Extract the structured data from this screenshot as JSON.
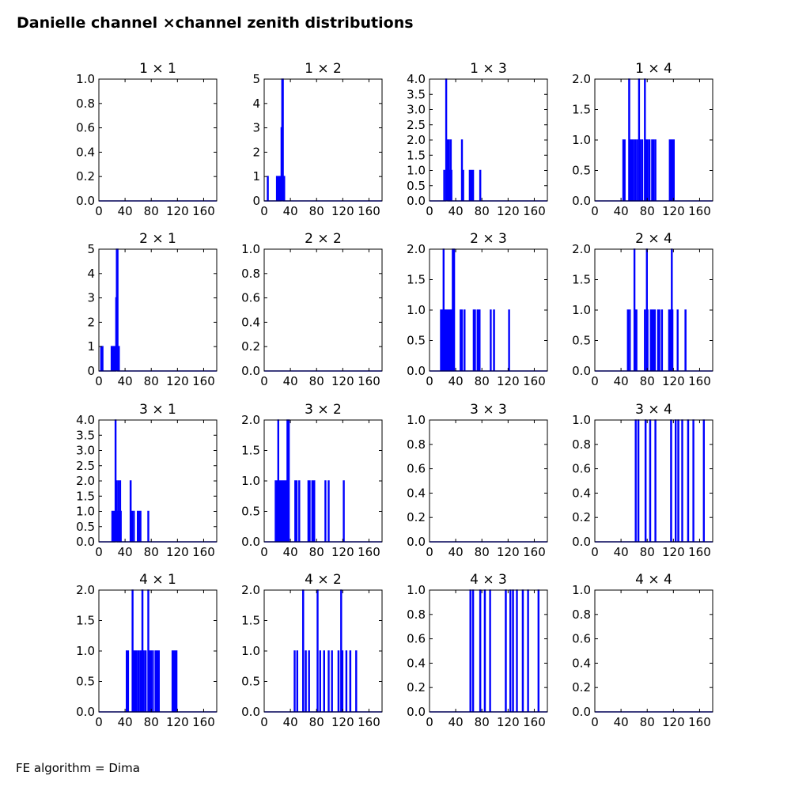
{
  "figure": {
    "title": "Danielle channel ×channel zenith distributions",
    "footnote": "FE algorithm = Dima"
  },
  "colors": {
    "line": "#0000ff",
    "axes": "#000000"
  },
  "chart_data": [
    {
      "type": "line",
      "title": "1 × 1",
      "xlim": [
        0,
        180
      ],
      "ylim": [
        0,
        1.0
      ],
      "xticks": [
        0,
        40,
        80,
        120,
        160
      ],
      "yticks": [
        0.0,
        0.2,
        0.4,
        0.6,
        0.8,
        1.0
      ],
      "ytick_decimals": 1,
      "step": 1,
      "spikes": []
    },
    {
      "type": "line",
      "title": "1 × 2",
      "xlim": [
        0,
        180
      ],
      "ylim": [
        0,
        5
      ],
      "xticks": [
        0,
        40,
        80,
        120,
        160
      ],
      "yticks": [
        0,
        1,
        2,
        3,
        4,
        5
      ],
      "ytick_decimals": 0,
      "step": 1,
      "spikes": [
        [
          5,
          1
        ],
        [
          19,
          1
        ],
        [
          21,
          1
        ],
        [
          23,
          1
        ],
        [
          26,
          3
        ],
        [
          27,
          5
        ],
        [
          28,
          5
        ],
        [
          30,
          1
        ]
      ]
    },
    {
      "type": "line",
      "title": "1 × 3",
      "xlim": [
        0,
        180
      ],
      "ylim": [
        0,
        4.0
      ],
      "xticks": [
        0,
        40,
        80,
        120,
        160
      ],
      "yticks": [
        0.0,
        0.5,
        1.0,
        1.5,
        2.0,
        2.5,
        3.0,
        3.5,
        4.0
      ],
      "ytick_decimals": 1,
      "step": 1,
      "spikes": [
        [
          22,
          1
        ],
        [
          25,
          4
        ],
        [
          26,
          2
        ],
        [
          27,
          1
        ],
        [
          29,
          2
        ],
        [
          30,
          1
        ],
        [
          32,
          2
        ],
        [
          33,
          1
        ],
        [
          49,
          2
        ],
        [
          51,
          1
        ],
        [
          61,
          1
        ],
        [
          63,
          1
        ],
        [
          64,
          1
        ],
        [
          66,
          1
        ],
        [
          77,
          1
        ]
      ]
    },
    {
      "type": "line",
      "title": "1 × 4",
      "xlim": [
        0,
        180
      ],
      "ylim": [
        0,
        2.0
      ],
      "xticks": [
        0,
        40,
        80,
        120,
        160
      ],
      "yticks": [
        0.0,
        0.5,
        1.0,
        1.5,
        2.0
      ],
      "ytick_decimals": 1,
      "step": 1,
      "spikes": [
        [
          43,
          1
        ],
        [
          45,
          1
        ],
        [
          52,
          2
        ],
        [
          54,
          1
        ],
        [
          56,
          1
        ],
        [
          58,
          1
        ],
        [
          61,
          1
        ],
        [
          64,
          1
        ],
        [
          67,
          2
        ],
        [
          69,
          1
        ],
        [
          72,
          1
        ],
        [
          76,
          2
        ],
        [
          78,
          1
        ],
        [
          80,
          1
        ],
        [
          83,
          1
        ],
        [
          87,
          1
        ],
        [
          89,
          1
        ],
        [
          92,
          1
        ],
        [
          114,
          1
        ],
        [
          116,
          1
        ],
        [
          118,
          1
        ],
        [
          120,
          1
        ]
      ]
    },
    {
      "type": "line",
      "title": "2 × 1",
      "xlim": [
        0,
        180
      ],
      "ylim": [
        0,
        5
      ],
      "xticks": [
        0,
        40,
        80,
        120,
        160
      ],
      "yticks": [
        0,
        1,
        2,
        3,
        4,
        5
      ],
      "ytick_decimals": 0,
      "step": 1,
      "spikes": [
        [
          3,
          1
        ],
        [
          5,
          1
        ],
        [
          19,
          1
        ],
        [
          21,
          1
        ],
        [
          23,
          1
        ],
        [
          26,
          3
        ],
        [
          27,
          5
        ],
        [
          28,
          5
        ],
        [
          30,
          1
        ]
      ]
    },
    {
      "type": "line",
      "title": "2 × 2",
      "xlim": [
        0,
        180
      ],
      "ylim": [
        0,
        1.0
      ],
      "xticks": [
        0,
        40,
        80,
        120,
        160
      ],
      "yticks": [
        0.0,
        0.2,
        0.4,
        0.6,
        0.8,
        1.0
      ],
      "ytick_decimals": 1,
      "step": 1,
      "spikes": []
    },
    {
      "type": "line",
      "title": "2 × 3",
      "xlim": [
        0,
        180
      ],
      "ylim": [
        0,
        2.0
      ],
      "xticks": [
        0,
        40,
        80,
        120,
        160
      ],
      "yticks": [
        0.0,
        0.5,
        1.0,
        1.5,
        2.0
      ],
      "ytick_decimals": 1,
      "step": 1,
      "spikes": [
        [
          17,
          1
        ],
        [
          19,
          1
        ],
        [
          21,
          2
        ],
        [
          23,
          1
        ],
        [
          25,
          1
        ],
        [
          27,
          1
        ],
        [
          29,
          1
        ],
        [
          31,
          1
        ],
        [
          33,
          1
        ],
        [
          35,
          2
        ],
        [
          37,
          2
        ],
        [
          47,
          1
        ],
        [
          49,
          1
        ],
        [
          53,
          1
        ],
        [
          67,
          1
        ],
        [
          69,
          1
        ],
        [
          73,
          1
        ],
        [
          76,
          1
        ],
        [
          93,
          1
        ],
        [
          98,
          1
        ],
        [
          121,
          1
        ]
      ]
    },
    {
      "type": "line",
      "title": "2 × 4",
      "xlim": [
        0,
        180
      ],
      "ylim": [
        0,
        2.0
      ],
      "xticks": [
        0,
        40,
        80,
        120,
        160
      ],
      "yticks": [
        0.0,
        0.5,
        1.0,
        1.5,
        2.0
      ],
      "ytick_decimals": 1,
      "step": 1,
      "spikes": [
        [
          50,
          1
        ],
        [
          53,
          1
        ],
        [
          60,
          2
        ],
        [
          61,
          1
        ],
        [
          63,
          1
        ],
        [
          76,
          1
        ],
        [
          79,
          2
        ],
        [
          80,
          1
        ],
        [
          85,
          1
        ],
        [
          88,
          1
        ],
        [
          91,
          1
        ],
        [
          96,
          1
        ],
        [
          98,
          1
        ],
        [
          102,
          1
        ],
        [
          113,
          1
        ],
        [
          115,
          1
        ],
        [
          117,
          2
        ],
        [
          118,
          1
        ],
        [
          126,
          1
        ],
        [
          138,
          1
        ]
      ]
    },
    {
      "type": "line",
      "title": "3 × 1",
      "xlim": [
        0,
        180
      ],
      "ylim": [
        0,
        4.0
      ],
      "xticks": [
        0,
        40,
        80,
        120,
        160
      ],
      "yticks": [
        0.0,
        0.5,
        1.0,
        1.5,
        2.0,
        2.5,
        3.0,
        3.5,
        4.0
      ],
      "ytick_decimals": 1,
      "step": 1,
      "spikes": [
        [
          20,
          1
        ],
        [
          23,
          1
        ],
        [
          25,
          4
        ],
        [
          26,
          2
        ],
        [
          27,
          1
        ],
        [
          29,
          2
        ],
        [
          30,
          1
        ],
        [
          32,
          2
        ],
        [
          33,
          1
        ],
        [
          48,
          2
        ],
        [
          50,
          1
        ],
        [
          53,
          1
        ],
        [
          59,
          1
        ],
        [
          61,
          1
        ],
        [
          63,
          1
        ],
        [
          75,
          1
        ]
      ]
    },
    {
      "type": "line",
      "title": "3 × 2",
      "xlim": [
        0,
        180
      ],
      "ylim": [
        0,
        2.0
      ],
      "xticks": [
        0,
        40,
        80,
        120,
        160
      ],
      "yticks": [
        0.0,
        0.5,
        1.0,
        1.5,
        2.0
      ],
      "ytick_decimals": 1,
      "step": 1,
      "spikes": [
        [
          17,
          1
        ],
        [
          19,
          1
        ],
        [
          21,
          2
        ],
        [
          23,
          1
        ],
        [
          25,
          1
        ],
        [
          27,
          1
        ],
        [
          29,
          1
        ],
        [
          31,
          1
        ],
        [
          33,
          1
        ],
        [
          35,
          2
        ],
        [
          37,
          2
        ],
        [
          47,
          1
        ],
        [
          49,
          1
        ],
        [
          53,
          1
        ],
        [
          67,
          1
        ],
        [
          69,
          1
        ],
        [
          73,
          1
        ],
        [
          76,
          1
        ],
        [
          93,
          1
        ],
        [
          98,
          1
        ],
        [
          121,
          1
        ]
      ]
    },
    {
      "type": "line",
      "title": "3 × 3",
      "xlim": [
        0,
        180
      ],
      "ylim": [
        0,
        1.0
      ],
      "xticks": [
        0,
        40,
        80,
        120,
        160
      ],
      "yticks": [
        0.0,
        0.2,
        0.4,
        0.6,
        0.8,
        1.0
      ],
      "ytick_decimals": 1,
      "step": 1,
      "spikes": []
    },
    {
      "type": "line",
      "title": "3 × 4",
      "xlim": [
        0,
        180
      ],
      "ylim": [
        0,
        1.0
      ],
      "xticks": [
        0,
        40,
        80,
        120,
        160
      ],
      "yticks": [
        0.0,
        0.2,
        0.4,
        0.6,
        0.8,
        1.0
      ],
      "ytick_decimals": 1,
      "step": 1,
      "spikes": [
        [
          62,
          1
        ],
        [
          66,
          1
        ],
        [
          77,
          1
        ],
        [
          84,
          1
        ],
        [
          92,
          1
        ],
        [
          116,
          1
        ],
        [
          123,
          1
        ],
        [
          127,
          1
        ],
        [
          133,
          1
        ],
        [
          142,
          1
        ],
        [
          150,
          1
        ],
        [
          166,
          1
        ]
      ]
    },
    {
      "type": "line",
      "title": "4 × 1",
      "xlim": [
        0,
        180
      ],
      "ylim": [
        0,
        2.0
      ],
      "xticks": [
        0,
        40,
        80,
        120,
        160
      ],
      "yticks": [
        0.0,
        0.5,
        1.0,
        1.5,
        2.0
      ],
      "ytick_decimals": 1,
      "step": 1,
      "spikes": [
        [
          42,
          1
        ],
        [
          44,
          1
        ],
        [
          51,
          2
        ],
        [
          53,
          1
        ],
        [
          55,
          1
        ],
        [
          57,
          1
        ],
        [
          60,
          1
        ],
        [
          63,
          1
        ],
        [
          66,
          2
        ],
        [
          68,
          1
        ],
        [
          71,
          1
        ],
        [
          75,
          2
        ],
        [
          77,
          1
        ],
        [
          79,
          1
        ],
        [
          82,
          1
        ],
        [
          86,
          1
        ],
        [
          88,
          1
        ],
        [
          91,
          1
        ],
        [
          112,
          1
        ],
        [
          114,
          1
        ],
        [
          116,
          1
        ],
        [
          118,
          1
        ]
      ]
    },
    {
      "type": "line",
      "title": "4 × 2",
      "xlim": [
        0,
        180
      ],
      "ylim": [
        0,
        2.0
      ],
      "xticks": [
        0,
        40,
        80,
        120,
        160
      ],
      "yticks": [
        0.0,
        0.5,
        1.0,
        1.5,
        2.0
      ],
      "ytick_decimals": 1,
      "step": 1,
      "spikes": [
        [
          46,
          1
        ],
        [
          50,
          1
        ],
        [
          59,
          2
        ],
        [
          63,
          1
        ],
        [
          68,
          1
        ],
        [
          81,
          2
        ],
        [
          85,
          1
        ],
        [
          91,
          1
        ],
        [
          98,
          1
        ],
        [
          103,
          1
        ],
        [
          113,
          1
        ],
        [
          117,
          2
        ],
        [
          119,
          1
        ],
        [
          125,
          1
        ],
        [
          131,
          1
        ],
        [
          140,
          1
        ]
      ]
    },
    {
      "type": "line",
      "title": "4 × 3",
      "xlim": [
        0,
        180
      ],
      "ylim": [
        0,
        1.0
      ],
      "xticks": [
        0,
        40,
        80,
        120,
        160
      ],
      "yticks": [
        0.0,
        0.2,
        0.4,
        0.6,
        0.8,
        1.0
      ],
      "ytick_decimals": 1,
      "step": 1,
      "spikes": [
        [
          62,
          1
        ],
        [
          66,
          1
        ],
        [
          77,
          1
        ],
        [
          84,
          1
        ],
        [
          92,
          1
        ],
        [
          116,
          1
        ],
        [
          123,
          1
        ],
        [
          127,
          1
        ],
        [
          133,
          1
        ],
        [
          142,
          1
        ],
        [
          150,
          1
        ],
        [
          166,
          1
        ]
      ]
    },
    {
      "type": "line",
      "title": "4 × 4",
      "xlim": [
        0,
        180
      ],
      "ylim": [
        0,
        1.0
      ],
      "xticks": [
        0,
        40,
        80,
        120,
        160
      ],
      "yticks": [
        0.0,
        0.2,
        0.4,
        0.6,
        0.8,
        1.0
      ],
      "ytick_decimals": 1,
      "step": 1,
      "spikes": []
    }
  ]
}
